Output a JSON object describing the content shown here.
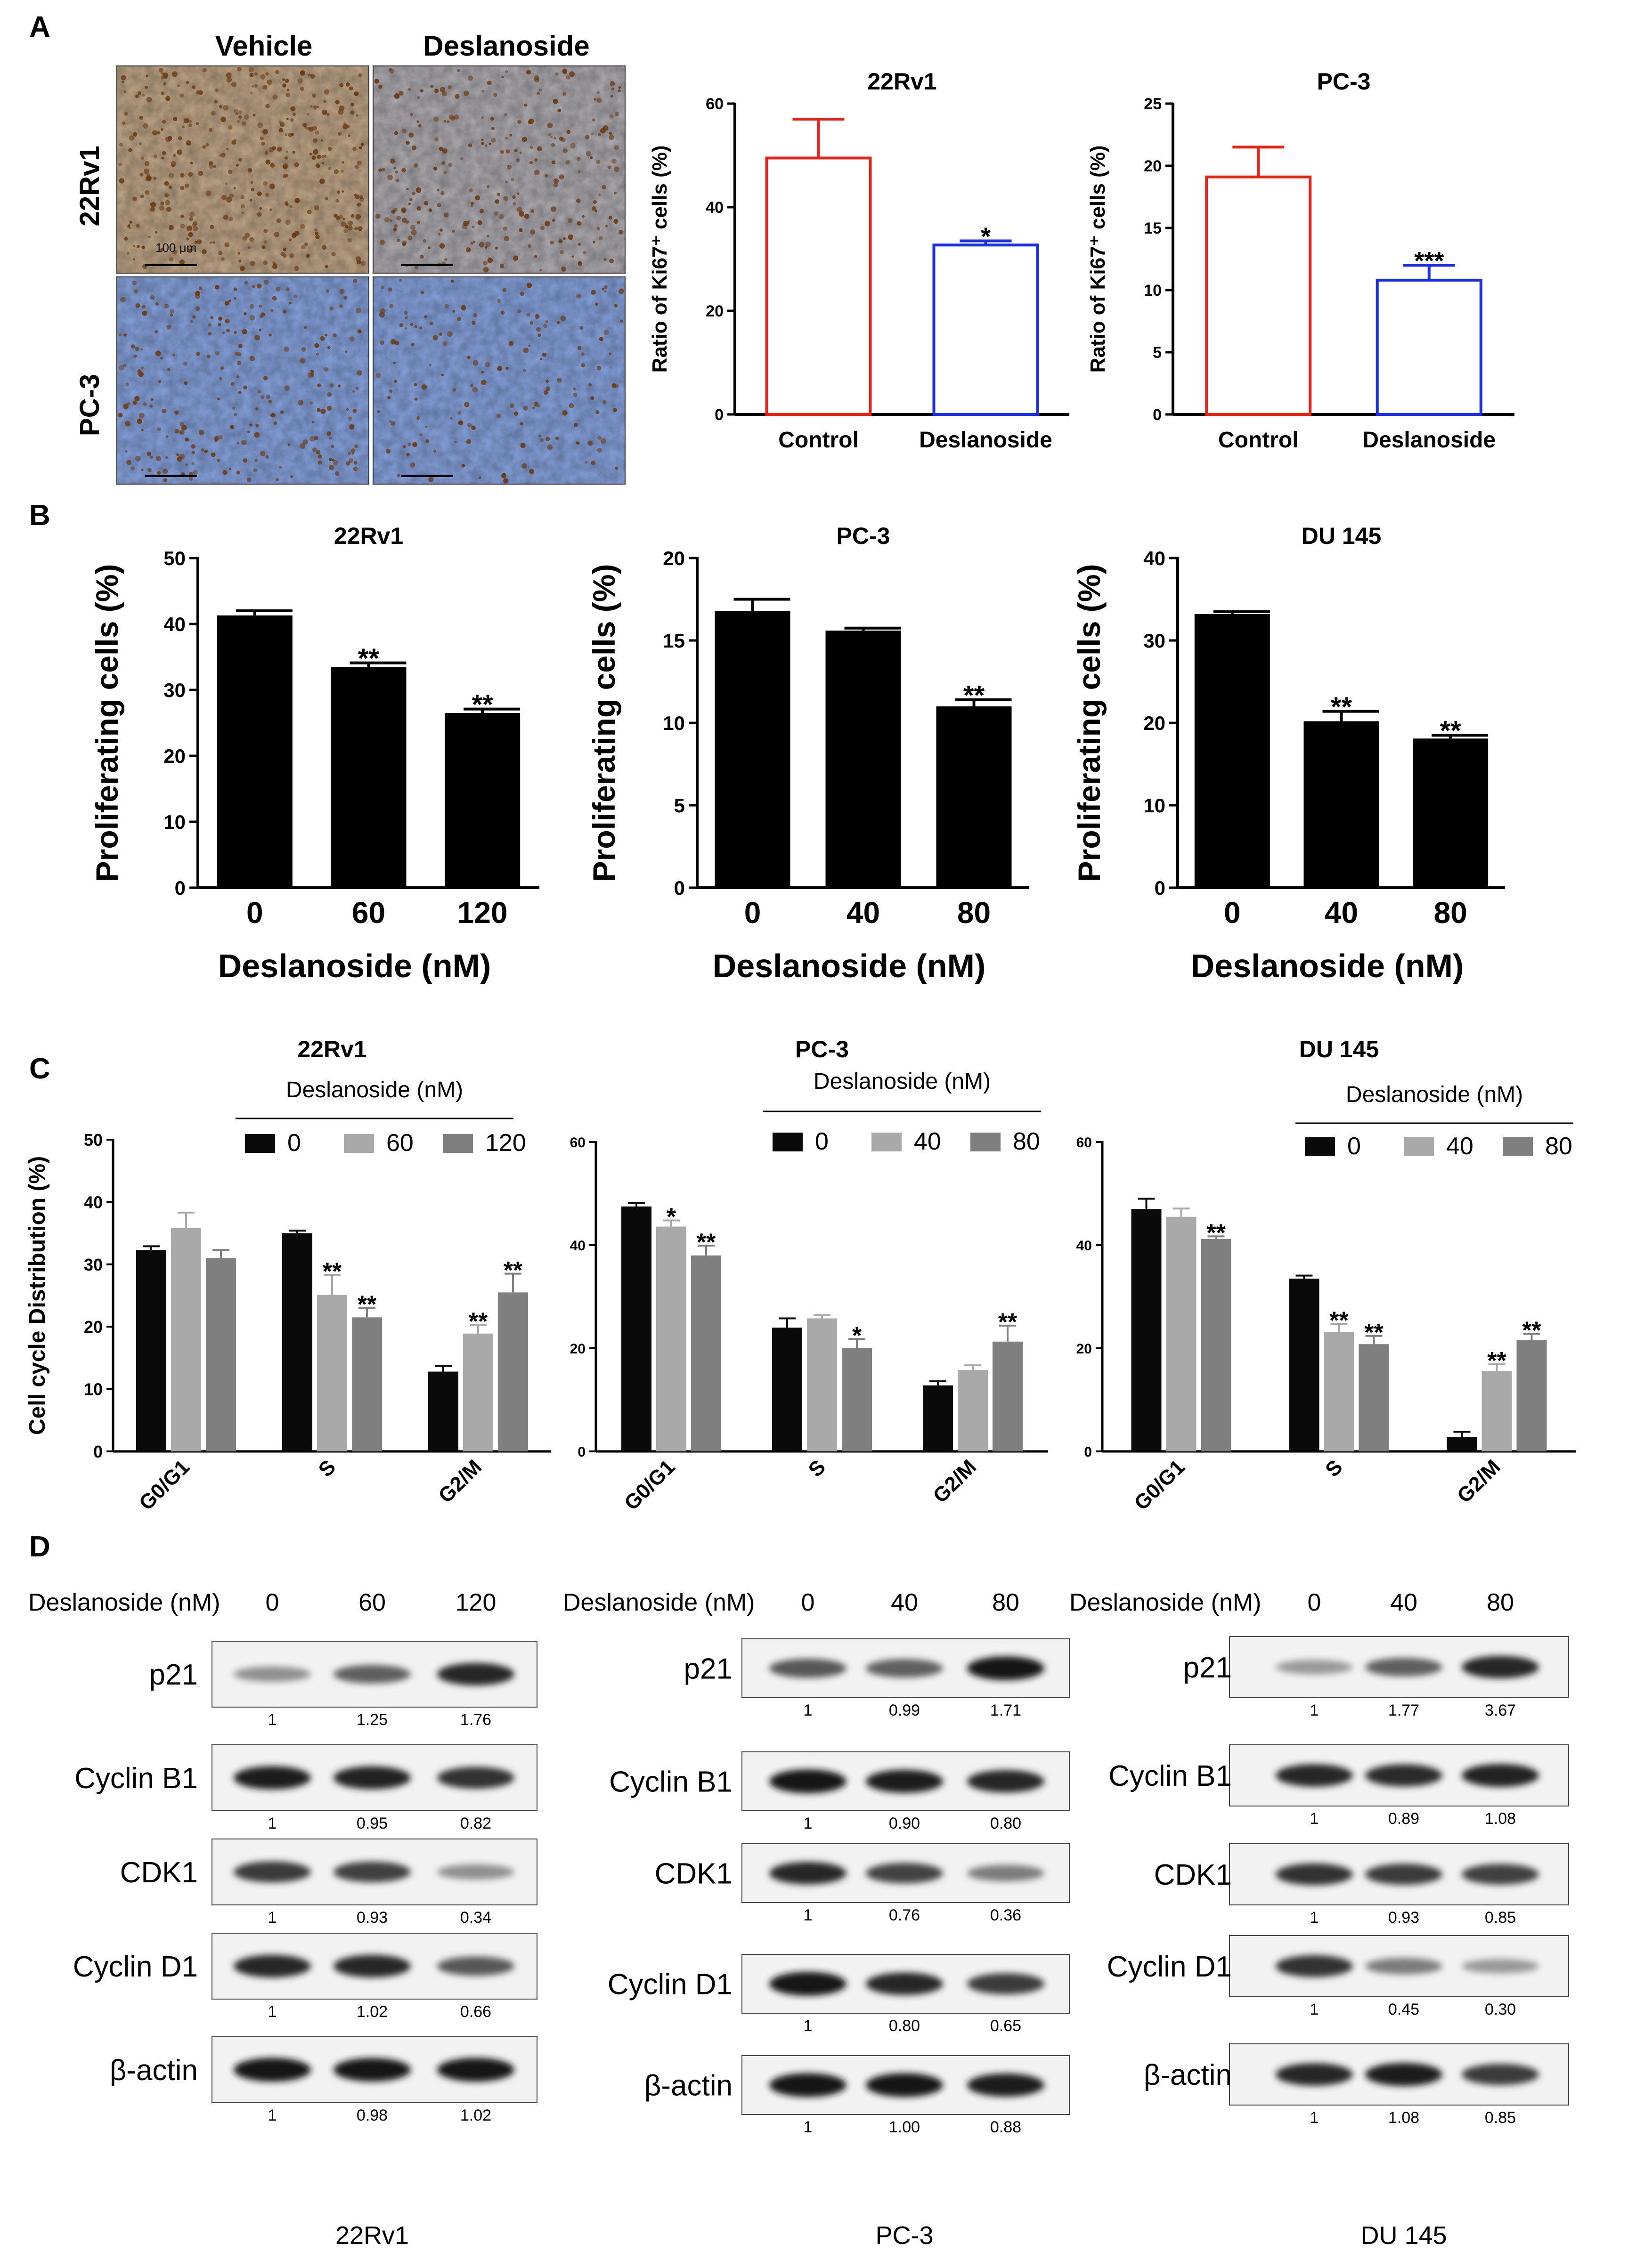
{
  "panel_letters": {
    "a": "A",
    "b": "B",
    "c": "C",
    "d": "D"
  },
  "panel_a": {
    "col_headers": [
      "Vehicle",
      "Deslanoside"
    ],
    "row_labels": [
      "22Rv1",
      "PC-3"
    ],
    "scale_bar_label": "100 μm",
    "colors": {
      "vehicle_tissue": "#b59d80",
      "drug_tissue": "#a5a2a8",
      "pc3_tissue": "#7f9ad2",
      "nuclei": "#6b3a14",
      "scale_bar": "#000000"
    }
  },
  "chart_data": [
    {
      "id": "a1",
      "type": "bar",
      "title": "22Rv1",
      "categories": [
        "Control",
        "Deslanoside"
      ],
      "values": [
        49.5,
        32.7
      ],
      "errors": [
        7.5,
        0.8
      ],
      "stars": [
        "",
        "*"
      ],
      "ylabel": "Ratio of Ki67⁺ cells (%)",
      "ylim": [
        0,
        60
      ],
      "yticks": [
        0,
        20,
        40,
        60
      ],
      "colors": [
        "#e32219",
        "#1b2ee0"
      ],
      "style": "open"
    },
    {
      "id": "a2",
      "type": "bar",
      "title": "PC-3",
      "categories": [
        "Control",
        "Deslanoside"
      ],
      "values": [
        19.1,
        10.8
      ],
      "errors": [
        2.4,
        1.2
      ],
      "stars": [
        "",
        "***"
      ],
      "ylabel": "Ratio of Ki67⁺ cells (%)",
      "ylim": [
        0,
        25
      ],
      "yticks": [
        0,
        5,
        10,
        15,
        20,
        25
      ],
      "colors": [
        "#e32219",
        "#1b2ee0"
      ],
      "style": "open"
    },
    {
      "id": "b1",
      "type": "bar",
      "title": "22Rv1",
      "categories": [
        "0",
        "60",
        "120"
      ],
      "values": [
        41.3,
        33.5,
        26.5
      ],
      "errors": [
        0.7,
        0.6,
        0.6
      ],
      "stars": [
        "",
        "**",
        "**"
      ],
      "xlabel": "Deslanoside (nM)",
      "ylabel": "Proliferating cells (%)",
      "ylim": [
        0,
        50
      ],
      "yticks": [
        0,
        10,
        20,
        30,
        40,
        50
      ],
      "colors": [
        "#000000"
      ],
      "style": "filled"
    },
    {
      "id": "b2",
      "type": "bar",
      "title": "PC-3",
      "categories": [
        "0",
        "40",
        "80"
      ],
      "values": [
        16.8,
        15.6,
        11.0
      ],
      "errors": [
        0.7,
        0.15,
        0.4
      ],
      "stars": [
        "",
        "",
        "**"
      ],
      "xlabel": "Deslanoside (nM)",
      "ylabel": "Proliferating cells (%)",
      "ylim": [
        0,
        20
      ],
      "yticks": [
        0,
        5,
        10,
        15,
        20
      ],
      "colors": [
        "#000000"
      ],
      "style": "filled"
    },
    {
      "id": "b3",
      "type": "bar",
      "title": "DU 145",
      "categories": [
        "0",
        "40",
        "80"
      ],
      "values": [
        33.2,
        20.2,
        18.1
      ],
      "errors": [
        0.3,
        1.2,
        0.4
      ],
      "stars": [
        "",
        "**",
        "**"
      ],
      "xlabel": "Deslanoside (nM)",
      "ylabel": "Proliferating cells (%)",
      "ylim": [
        0,
        40
      ],
      "yticks": [
        0,
        10,
        20,
        30,
        40
      ],
      "colors": [
        "#000000"
      ],
      "style": "filled"
    },
    {
      "id": "c1",
      "type": "bar",
      "title": "22Rv1",
      "legend_title": "Deslanoside (nM)",
      "categories": [
        "G0/G1",
        "S",
        "G2/M"
      ],
      "series": [
        {
          "name": "0",
          "values": [
            32.3,
            35.0,
            12.8
          ],
          "errors": [
            0.6,
            0.4,
            0.9
          ],
          "stars": [
            "",
            "",
            ""
          ]
        },
        {
          "name": "60",
          "values": [
            35.8,
            25.1,
            18.9
          ],
          "errors": [
            2.5,
            3.2,
            1.4
          ],
          "stars": [
            "",
            "**",
            "**"
          ]
        },
        {
          "name": "120",
          "values": [
            31.0,
            21.5,
            25.5
          ],
          "errors": [
            1.3,
            1.5,
            3.0
          ],
          "stars": [
            "",
            "**",
            "**"
          ]
        }
      ],
      "ylabel": "Cell cycle Distribution (%)",
      "ylim": [
        0,
        50
      ],
      "yticks": [
        0,
        10,
        20,
        30,
        40,
        50
      ],
      "colors": [
        "#0a0a0a",
        "#a9a9a9",
        "#7f7f7f"
      ],
      "style": "grouped"
    },
    {
      "id": "c2",
      "type": "bar",
      "title": "PC-3",
      "legend_title": "Deslanoside (nM)",
      "categories": [
        "G0/G1",
        "S",
        "G2/M"
      ],
      "series": [
        {
          "name": "0",
          "values": [
            47.5,
            24.0,
            12.8
          ],
          "errors": [
            0.7,
            1.8,
            0.8
          ],
          "stars": [
            "",
            "",
            ""
          ]
        },
        {
          "name": "40",
          "values": [
            43.6,
            25.8,
            15.8
          ],
          "errors": [
            1.2,
            0.6,
            0.9
          ],
          "stars": [
            "*",
            "",
            ""
          ]
        },
        {
          "name": "80",
          "values": [
            38.0,
            20.0,
            21.3
          ],
          "errors": [
            1.9,
            1.8,
            3.1
          ],
          "stars": [
            "**",
            "*",
            "**"
          ]
        }
      ],
      "ylabel": "",
      "ylim": [
        0,
        60
      ],
      "yticks": [
        0,
        20,
        40,
        60
      ],
      "colors": [
        "#0a0a0a",
        "#a9a9a9",
        "#7f7f7f"
      ],
      "style": "grouped"
    },
    {
      "id": "c3",
      "type": "bar",
      "title": "DU 145",
      "legend_title": "Deslanoside (nM)",
      "categories": [
        "G0/G1",
        "S",
        "G2/M"
      ],
      "series": [
        {
          "name": "0",
          "values": [
            47.0,
            33.5,
            2.8
          ],
          "errors": [
            2.0,
            0.6,
            1.0
          ],
          "stars": [
            "",
            "",
            ""
          ]
        },
        {
          "name": "40",
          "values": [
            45.5,
            23.2,
            15.6
          ],
          "errors": [
            1.6,
            1.5,
            1.3
          ],
          "stars": [
            "",
            "**",
            "**"
          ]
        },
        {
          "name": "80",
          "values": [
            41.2,
            20.8,
            21.6
          ],
          "errors": [
            0.5,
            1.6,
            1.2
          ],
          "stars": [
            "**",
            "**",
            "**"
          ]
        }
      ],
      "ylabel": "",
      "ylim": [
        0,
        60
      ],
      "yticks": [
        0,
        20,
        40,
        60
      ],
      "colors": [
        "#0a0a0a",
        "#a9a9a9",
        "#7f7f7f"
      ],
      "style": "grouped"
    }
  ],
  "panel_d": {
    "blots": [
      {
        "dose_label": "Deslanoside (nM)",
        "doses": [
          "0",
          "60",
          "120"
        ],
        "cell_line": "22Rv1",
        "proteins": [
          {
            "name": "p21",
            "values": [
              "1",
              "1.25",
              "1.76"
            ],
            "intensity": [
              0.3,
              0.55,
              0.85
            ]
          },
          {
            "name": "Cyclin B1",
            "values": [
              "1",
              "0.95",
              "0.82"
            ],
            "intensity": [
              0.9,
              0.88,
              0.8
            ]
          },
          {
            "name": "CDK1",
            "values": [
              "1",
              "0.93",
              "0.34"
            ],
            "intensity": [
              0.75,
              0.72,
              0.3
            ]
          },
          {
            "name": "Cyclin D1",
            "values": [
              "1",
              "1.02",
              "0.66"
            ],
            "intensity": [
              0.85,
              0.85,
              0.6
            ]
          },
          {
            "name": "β-actin",
            "values": [
              "1",
              "0.98",
              "1.02"
            ],
            "intensity": [
              0.95,
              0.93,
              0.95
            ]
          }
        ]
      },
      {
        "dose_label": "Deslanoside (nM)",
        "doses": [
          "0",
          "40",
          "80"
        ],
        "cell_line": "PC-3",
        "proteins": [
          {
            "name": "p21",
            "values": [
              "1",
              "0.99",
              "1.71"
            ],
            "intensity": [
              0.6,
              0.55,
              0.95
            ]
          },
          {
            "name": "Cyclin B1",
            "values": [
              "1",
              "0.90",
              "0.80"
            ],
            "intensity": [
              0.95,
              0.9,
              0.85
            ]
          },
          {
            "name": "CDK1",
            "values": [
              "1",
              "0.76",
              "0.36"
            ],
            "intensity": [
              0.85,
              0.7,
              0.4
            ]
          },
          {
            "name": "Cyclin D1",
            "values": [
              "1",
              "0.80",
              "0.65"
            ],
            "intensity": [
              0.95,
              0.85,
              0.75
            ]
          },
          {
            "name": "β-actin",
            "values": [
              "1",
              "1.00",
              "0.88"
            ],
            "intensity": [
              0.95,
              0.95,
              0.9
            ]
          }
        ]
      },
      {
        "dose_label": "Deslanoside (nM)",
        "doses": [
          "0",
          "40",
          "80"
        ],
        "cell_line": "DU 145",
        "proteins": [
          {
            "name": "p21",
            "values": [
              "1",
              "1.77",
              "3.67"
            ],
            "intensity": [
              0.25,
              0.55,
              0.85
            ]
          },
          {
            "name": "Cyclin B1",
            "values": [
              "1",
              "0.89",
              "1.08"
            ],
            "intensity": [
              0.85,
              0.82,
              0.88
            ]
          },
          {
            "name": "CDK1",
            "values": [
              "1",
              "0.93",
              "0.85"
            ],
            "intensity": [
              0.8,
              0.75,
              0.72
            ]
          },
          {
            "name": "Cyclin D1",
            "values": [
              "1",
              "0.45",
              "0.30"
            ],
            "intensity": [
              0.8,
              0.4,
              0.25
            ]
          },
          {
            "name": "β-actin",
            "values": [
              "1",
              "1.08",
              "0.85"
            ],
            "intensity": [
              0.85,
              0.9,
              0.75
            ]
          }
        ]
      }
    ]
  }
}
